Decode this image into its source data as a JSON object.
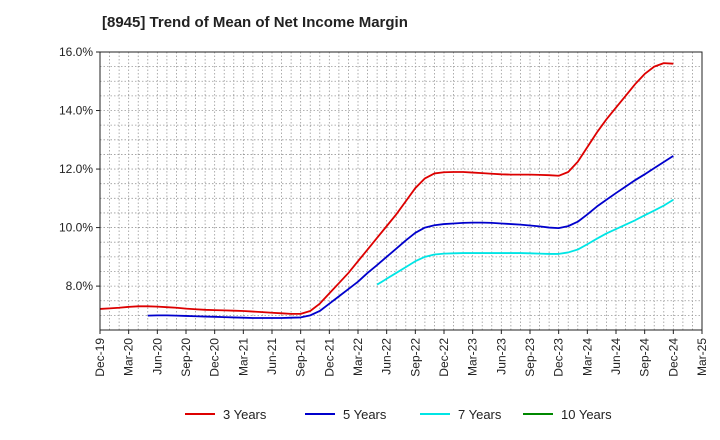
{
  "chart_data": {
    "type": "line",
    "title": "[8945]  Trend of Mean of Net Income Margin",
    "xlabel": "",
    "ylabel": "",
    "x_ticks": [
      "Dec-19",
      "Mar-20",
      "Jun-20",
      "Sep-20",
      "Dec-20",
      "Mar-21",
      "Jun-21",
      "Sep-21",
      "Dec-21",
      "Mar-22",
      "Jun-22",
      "Sep-22",
      "Dec-22",
      "Mar-23",
      "Jun-23",
      "Sep-23",
      "Dec-23",
      "Mar-24",
      "Jun-24",
      "Sep-24",
      "Dec-24",
      "Mar-25"
    ],
    "y_ticks": [
      8,
      10,
      12,
      14,
      16
    ],
    "y_tick_labels": [
      "8.0%",
      "10.0%",
      "12.0%",
      "14.0%",
      "16.0%"
    ],
    "ylim": [
      6.5,
      16.0
    ],
    "grid": "dotted",
    "legend_position": "bottom",
    "series": [
      {
        "name": "3 Years",
        "color": "#dd0000",
        "points": [
          [
            "Dec-19",
            7.22
          ],
          [
            "Jan-20",
            7.24
          ],
          [
            "Feb-20",
            7.26
          ],
          [
            "Mar-20",
            7.29
          ],
          [
            "Apr-20",
            7.31
          ],
          [
            "May-20",
            7.31
          ],
          [
            "Jun-20",
            7.3
          ],
          [
            "Jul-20",
            7.28
          ],
          [
            "Aug-20",
            7.26
          ],
          [
            "Sep-20",
            7.23
          ],
          [
            "Oct-20",
            7.21
          ],
          [
            "Nov-20",
            7.19
          ],
          [
            "Dec-20",
            7.18
          ],
          [
            "Jan-21",
            7.17
          ],
          [
            "Feb-21",
            7.16
          ],
          [
            "Mar-21",
            7.15
          ],
          [
            "Apr-21",
            7.13
          ],
          [
            "May-21",
            7.11
          ],
          [
            "Jun-21",
            7.09
          ],
          [
            "Jul-21",
            7.07
          ],
          [
            "Aug-21",
            7.05
          ],
          [
            "Sep-21",
            7.05
          ],
          [
            "Oct-21",
            7.15
          ],
          [
            "Nov-21",
            7.4
          ],
          [
            "Dec-21",
            7.75
          ],
          [
            "Jan-22",
            8.1
          ],
          [
            "Feb-22",
            8.45
          ],
          [
            "Mar-22",
            8.85
          ],
          [
            "Apr-22",
            9.25
          ],
          [
            "May-22",
            9.65
          ],
          [
            "Jun-22",
            10.05
          ],
          [
            "Jul-22",
            10.45
          ],
          [
            "Aug-22",
            10.9
          ],
          [
            "Sep-22",
            11.35
          ],
          [
            "Oct-22",
            11.68
          ],
          [
            "Nov-22",
            11.85
          ],
          [
            "Dec-22",
            11.89
          ],
          [
            "Jan-23",
            11.9
          ],
          [
            "Feb-23",
            11.9
          ],
          [
            "Mar-23",
            11.88
          ],
          [
            "Apr-23",
            11.86
          ],
          [
            "May-23",
            11.84
          ],
          [
            "Jun-23",
            11.82
          ],
          [
            "Jul-23",
            11.81
          ],
          [
            "Aug-23",
            11.81
          ],
          [
            "Sep-23",
            11.81
          ],
          [
            "Oct-23",
            11.8
          ],
          [
            "Nov-23",
            11.79
          ],
          [
            "Dec-23",
            11.77
          ],
          [
            "Jan-24",
            11.9
          ],
          [
            "Feb-24",
            12.25
          ],
          [
            "Mar-24",
            12.75
          ],
          [
            "Apr-24",
            13.25
          ],
          [
            "May-24",
            13.7
          ],
          [
            "Jun-24",
            14.1
          ],
          [
            "Jul-24",
            14.5
          ],
          [
            "Aug-24",
            14.9
          ],
          [
            "Sep-24",
            15.25
          ],
          [
            "Oct-24",
            15.5
          ],
          [
            "Nov-24",
            15.62
          ],
          [
            "Dec-24",
            15.6
          ]
        ]
      },
      {
        "name": "5 Years",
        "color": "#0000cc",
        "points": [
          [
            "May-20",
            6.99
          ],
          [
            "Jun-20",
            7.0
          ],
          [
            "Jul-20",
            7.0
          ],
          [
            "Aug-20",
            6.99
          ],
          [
            "Sep-20",
            6.98
          ],
          [
            "Oct-20",
            6.97
          ],
          [
            "Nov-20",
            6.96
          ],
          [
            "Dec-20",
            6.95
          ],
          [
            "Jan-21",
            6.94
          ],
          [
            "Feb-21",
            6.93
          ],
          [
            "Mar-21",
            6.92
          ],
          [
            "Apr-21",
            6.91
          ],
          [
            "May-21",
            6.91
          ],
          [
            "Jun-21",
            6.91
          ],
          [
            "Jul-21",
            6.91
          ],
          [
            "Aug-21",
            6.92
          ],
          [
            "Sep-21",
            6.93
          ],
          [
            "Oct-21",
            7.0
          ],
          [
            "Nov-21",
            7.15
          ],
          [
            "Dec-21",
            7.4
          ],
          [
            "Jan-22",
            7.65
          ],
          [
            "Feb-22",
            7.9
          ],
          [
            "Mar-22",
            8.15
          ],
          [
            "Apr-22",
            8.45
          ],
          [
            "May-22",
            8.72
          ],
          [
            "Jun-22",
            9.0
          ],
          [
            "Jul-22",
            9.28
          ],
          [
            "Aug-22",
            9.56
          ],
          [
            "Sep-22",
            9.82
          ],
          [
            "Oct-22",
            10.0
          ],
          [
            "Nov-22",
            10.08
          ],
          [
            "Dec-22",
            10.12
          ],
          [
            "Jan-23",
            10.14
          ],
          [
            "Feb-23",
            10.16
          ],
          [
            "Mar-23",
            10.17
          ],
          [
            "Apr-23",
            10.17
          ],
          [
            "May-23",
            10.16
          ],
          [
            "Jun-23",
            10.14
          ],
          [
            "Jul-23",
            10.12
          ],
          [
            "Aug-23",
            10.1
          ],
          [
            "Sep-23",
            10.07
          ],
          [
            "Oct-23",
            10.04
          ],
          [
            "Nov-23",
            10.0
          ],
          [
            "Dec-23",
            9.98
          ],
          [
            "Jan-24",
            10.05
          ],
          [
            "Feb-24",
            10.2
          ],
          [
            "Mar-24",
            10.45
          ],
          [
            "Apr-24",
            10.72
          ],
          [
            "May-24",
            10.95
          ],
          [
            "Jun-24",
            11.18
          ],
          [
            "Jul-24",
            11.4
          ],
          [
            "Aug-24",
            11.62
          ],
          [
            "Sep-24",
            11.82
          ],
          [
            "Oct-24",
            12.03
          ],
          [
            "Nov-24",
            12.24
          ],
          [
            "Dec-24",
            12.45
          ]
        ]
      },
      {
        "name": "7 Years",
        "color": "#00e5e5",
        "points": [
          [
            "May-22",
            8.05
          ],
          [
            "Jun-22",
            8.25
          ],
          [
            "Jul-22",
            8.45
          ],
          [
            "Aug-22",
            8.65
          ],
          [
            "Sep-22",
            8.85
          ],
          [
            "Oct-22",
            9.0
          ],
          [
            "Nov-22",
            9.08
          ],
          [
            "Dec-22",
            9.11
          ],
          [
            "Jan-23",
            9.12
          ],
          [
            "Feb-23",
            9.13
          ],
          [
            "Mar-23",
            9.13
          ],
          [
            "Apr-23",
            9.13
          ],
          [
            "May-23",
            9.13
          ],
          [
            "Jun-23",
            9.13
          ],
          [
            "Jul-23",
            9.13
          ],
          [
            "Aug-23",
            9.13
          ],
          [
            "Sep-23",
            9.12
          ],
          [
            "Oct-23",
            9.11
          ],
          [
            "Nov-23",
            9.1
          ],
          [
            "Dec-23",
            9.1
          ],
          [
            "Jan-24",
            9.15
          ],
          [
            "Feb-24",
            9.25
          ],
          [
            "Mar-24",
            9.43
          ],
          [
            "Apr-24",
            9.62
          ],
          [
            "May-24",
            9.8
          ],
          [
            "Jun-24",
            9.95
          ],
          [
            "Jul-24",
            10.1
          ],
          [
            "Aug-24",
            10.25
          ],
          [
            "Sep-24",
            10.42
          ],
          [
            "Oct-24",
            10.58
          ],
          [
            "Nov-24",
            10.75
          ],
          [
            "Dec-24",
            10.95
          ]
        ]
      },
      {
        "name": "10 Years",
        "color": "#008800",
        "points": []
      }
    ]
  }
}
